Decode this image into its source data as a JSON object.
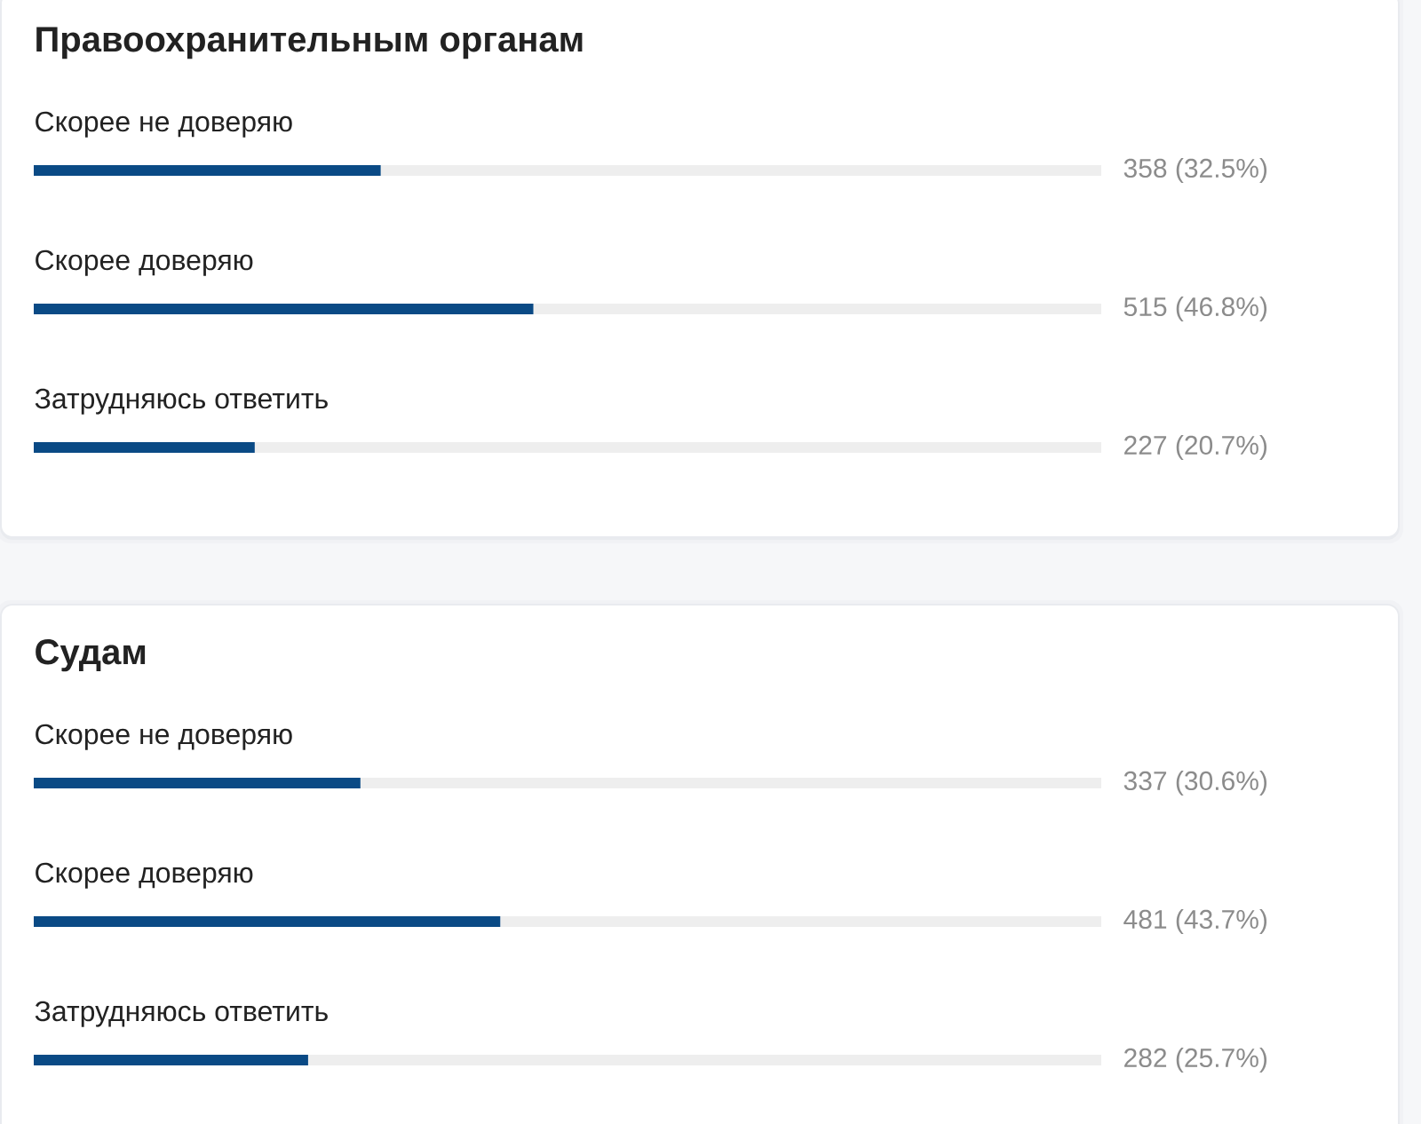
{
  "chart_data": [
    {
      "type": "bar",
      "orientation": "horizontal",
      "stacked": true,
      "title": "Правоохранительным органам",
      "categories": [
        "Скорее не доверяю",
        "Скорее доверяю",
        "Затрудняюсь ответить"
      ],
      "xlim": [
        0,
        100
      ],
      "series": [
        {
          "color": "#0a4a85",
          "values": [
            32.5,
            46.8,
            20.7
          ],
          "value_labels": [
            "358 (32.5%)",
            "515 (46.8%)",
            "227 (20.7%)"
          ]
        },
        {
          "color": "#eeeeee",
          "values": [
            67.5,
            53.2,
            79.3
          ]
        }
      ]
    },
    {
      "type": "bar",
      "orientation": "horizontal",
      "stacked": true,
      "title": "Судам",
      "categories": [
        "Скорее не доверяю",
        "Скорее доверяю",
        "Затрудняюсь ответить"
      ],
      "xlim": [
        0,
        100
      ],
      "series": [
        {
          "color": "#0a4a85",
          "values": [
            30.6,
            43.7,
            25.7
          ],
          "value_labels": [
            "337 (30.6%)",
            "481 (43.7%)",
            "282 (25.7%)"
          ]
        },
        {
          "color": "#eeeeee",
          "values": [
            69.4,
            56.3,
            74.3
          ]
        }
      ]
    }
  ]
}
